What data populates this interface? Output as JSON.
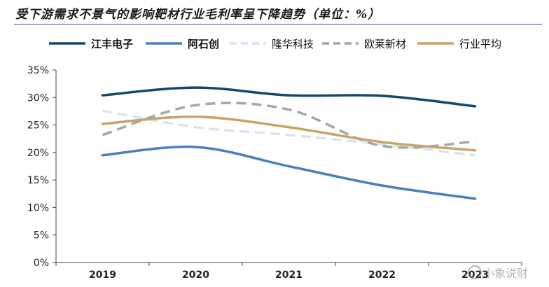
{
  "title": "受下游需求不景气的影响靶材行业毛利率呈下降趋势（单位：%）",
  "watermark": "小象说财",
  "chart_data": {
    "type": "line",
    "title": "受下游需求不景气的影响靶材行业毛利率呈下降趋势（单位：%）",
    "xlabel": "",
    "ylabel": "",
    "categories": [
      "2019",
      "2020",
      "2021",
      "2022",
      "2023"
    ],
    "ylim": [
      0,
      35
    ],
    "yticks": [
      0,
      5,
      10,
      15,
      20,
      25,
      30,
      35
    ],
    "ytick_labels": [
      "0%",
      "5%",
      "10%",
      "15%",
      "20%",
      "25%",
      "30%",
      "35%"
    ],
    "legend_position": "top",
    "grid": false,
    "series": [
      {
        "name": "江丰电子",
        "values": [
          30.4,
          31.8,
          30.4,
          30.3,
          28.4
        ],
        "color": "#15486a",
        "dash": "solid"
      },
      {
        "name": "阿石创",
        "values": [
          19.5,
          21.0,
          17.5,
          14.0,
          11.6
        ],
        "color": "#4a7fbd",
        "dash": "solid"
      },
      {
        "name": "隆华科技",
        "values": [
          27.6,
          24.6,
          23.2,
          21.5,
          19.5
        ],
        "color": "#d6e4f2",
        "dash": "dashed"
      },
      {
        "name": "欧莱新材",
        "values": [
          23.2,
          28.6,
          27.8,
          21.2,
          22.0
        ],
        "color": "#a6a6a6",
        "dash": "dashed"
      },
      {
        "name": "行业平均",
        "values": [
          25.2,
          26.5,
          24.6,
          21.9,
          20.4
        ],
        "color": "#c7a46a",
        "dash": "solid"
      }
    ]
  }
}
